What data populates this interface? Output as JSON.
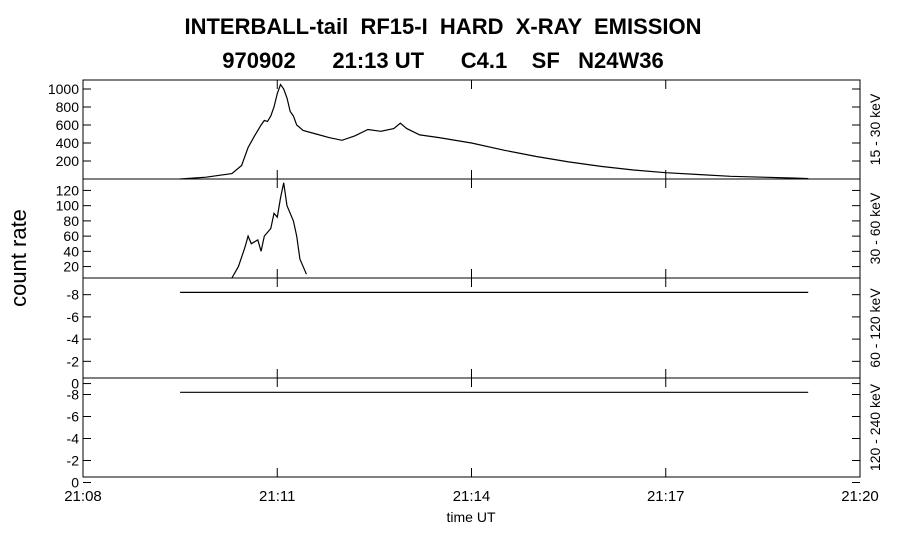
{
  "header": {
    "title_line1": "INTERBALL-tail  RF15-I  HARD  X-RAY  EMISSION",
    "title_line2": "970902      21:13 UT      C4.1    SF   N24W36"
  },
  "chart_data": {
    "type": "line",
    "ylabel": "count rate",
    "xlabel": "time UT",
    "x_range_minutes": [
      0,
      12
    ],
    "x_ticks": [
      {
        "label": "21:08",
        "minute": 0
      },
      {
        "label": "21:11",
        "minute": 3
      },
      {
        "label": "21:14",
        "minute": 6
      },
      {
        "label": "21:17",
        "minute": 9
      },
      {
        "label": "21:20",
        "minute": 12
      }
    ],
    "panels": [
      {
        "band_label": "15 - 30 keV",
        "ylim": [
          0,
          1100
        ],
        "yticks": [
          "200",
          "400",
          "600",
          "800",
          "1000"
        ],
        "ytick_values": [
          200,
          400,
          600,
          800,
          1000
        ],
        "series": {
          "x": [
            1.5,
            1.9,
            2.3,
            2.45,
            2.55,
            2.65,
            2.75,
            2.8,
            2.85,
            2.9,
            2.95,
            3.0,
            3.05,
            3.1,
            3.15,
            3.2,
            3.25,
            3.3,
            3.4,
            3.6,
            3.8,
            4.0,
            4.2,
            4.4,
            4.6,
            4.8,
            4.9,
            5.0,
            5.2,
            5.5,
            6.0,
            6.5,
            7.0,
            7.5,
            8.0,
            8.5,
            9.0,
            9.5,
            10.0,
            10.5,
            11.0,
            11.2
          ],
          "y": [
            0,
            20,
            60,
            150,
            350,
            480,
            600,
            650,
            640,
            700,
            800,
            950,
            1050,
            1000,
            900,
            750,
            700,
            600,
            540,
            500,
            460,
            430,
            480,
            550,
            530,
            560,
            620,
            560,
            490,
            460,
            400,
            320,
            250,
            190,
            140,
            100,
            70,
            50,
            30,
            20,
            10,
            5
          ]
        }
      },
      {
        "band_label": "30 - 60 keV",
        "ylim": [
          5,
          135
        ],
        "yticks": [
          "20",
          "40",
          "60",
          "80",
          "100",
          "120"
        ],
        "ytick_values": [
          20,
          40,
          60,
          80,
          100,
          120
        ],
        "series": {
          "x": [
            2.3,
            2.4,
            2.5,
            2.55,
            2.6,
            2.7,
            2.75,
            2.8,
            2.9,
            2.95,
            3.0,
            3.05,
            3.1,
            3.15,
            3.25,
            3.3,
            3.35,
            3.45
          ],
          "y": [
            5,
            20,
            45,
            60,
            50,
            55,
            40,
            60,
            70,
            90,
            85,
            110,
            130,
            100,
            80,
            60,
            30,
            10
          ]
        }
      },
      {
        "band_label": "60 - 120 keV",
        "ylim": [
          -0.5,
          -9.5
        ],
        "yticks": [
          "-8",
          "-6",
          "-4",
          "-2",
          "0"
        ],
        "ytick_values": [
          -8,
          -6,
          -4,
          -2,
          0
        ],
        "series": {
          "x": [
            1.5,
            11.2
          ],
          "y": [
            -8.2,
            -8.2
          ]
        }
      },
      {
        "band_label": "120 - 240 keV",
        "ylim": [
          -0.5,
          -9.5
        ],
        "yticks": [
          "-8",
          "-6",
          "-4",
          "-2",
          "0"
        ],
        "ytick_values": [
          -8,
          -6,
          -4,
          -2,
          0
        ],
        "series": {
          "x": [
            1.5,
            11.2
          ],
          "y": [
            -8.2,
            -8.2
          ]
        }
      }
    ]
  }
}
